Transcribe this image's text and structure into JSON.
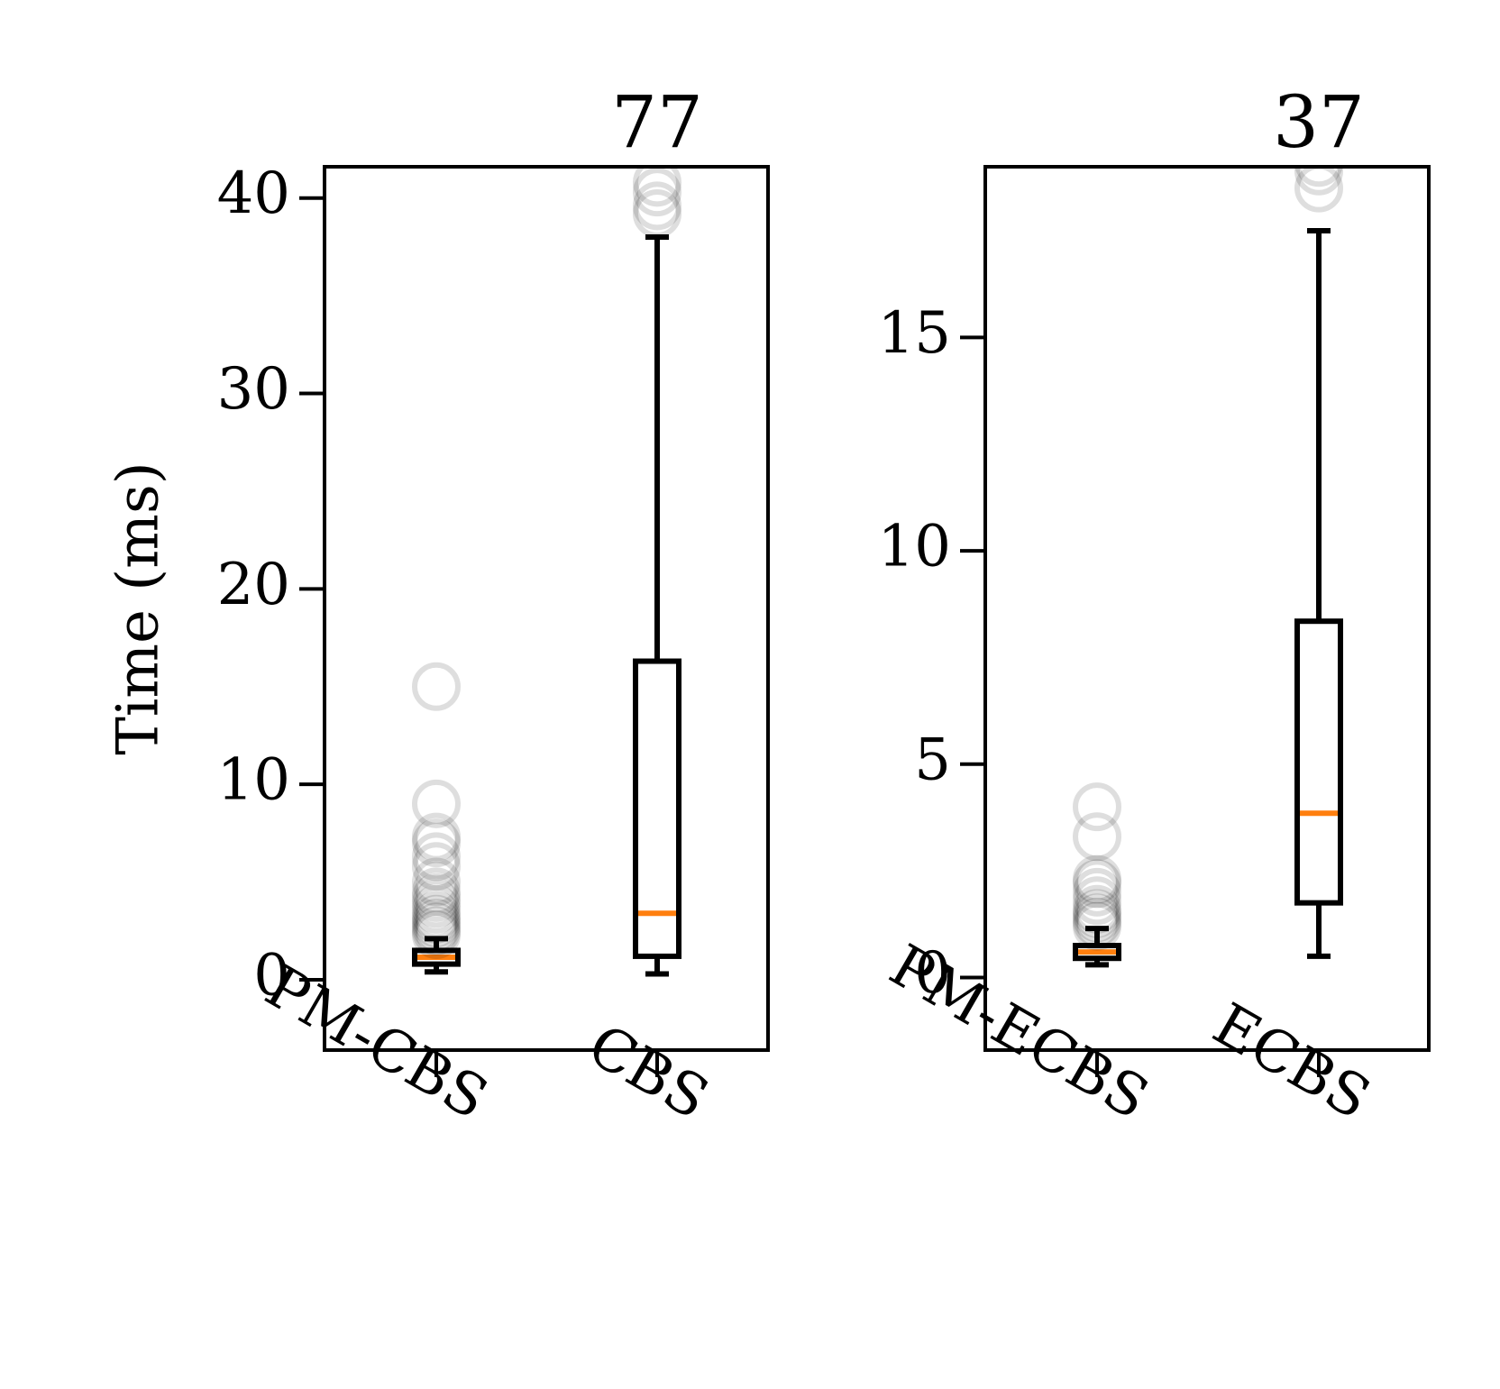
{
  "chart_data": [
    {
      "type": "box",
      "ylabel": "Time (ms)",
      "ylim": [
        -3.6,
        41.6
      ],
      "yticks": [
        0,
        10,
        20,
        30,
        40
      ],
      "grid": false,
      "categories": [
        "PM-CBS",
        "CBS"
      ],
      "boxes": [
        {
          "name": "PM-CBS",
          "whisker_low": 0.4,
          "q1": 0.8,
          "median": 1.15,
          "q3": 1.5,
          "whisker_high": 2.1,
          "outliers": [
            2.3,
            2.5,
            2.7,
            2.9,
            3.1,
            3.3,
            3.6,
            3.9,
            4.2,
            4.5,
            5.0,
            5.8,
            6.3,
            7.0,
            7.3,
            9.0,
            15.0
          ]
        },
        {
          "name": "CBS",
          "whisker_low": 0.3,
          "q1": 1.2,
          "median": 3.4,
          "q3": 16.3,
          "whisker_high": 38.0,
          "outliers": [
            39.2,
            39.6,
            40.3,
            40.8
          ]
        }
      ],
      "annotation": "77",
      "colors": {
        "box": "#000000",
        "median": "#ff7f0e",
        "outlier": "#000000"
      }
    },
    {
      "type": "box",
      "ylabel": "",
      "ylim": [
        -1.7,
        19.0
      ],
      "yticks": [
        0,
        5,
        10,
        15
      ],
      "grid": false,
      "categories": [
        "PM-ECBS",
        "ECBS"
      ],
      "boxes": [
        {
          "name": "PM-ECBS",
          "whisker_low": 0.3,
          "q1": 0.45,
          "median": 0.6,
          "q3": 0.75,
          "whisker_high": 1.15,
          "outliers": [
            1.2,
            1.3,
            1.4,
            1.5,
            1.6,
            1.8,
            2.0,
            2.2,
            2.3,
            3.3,
            4.0
          ]
        },
        {
          "name": "ECBS",
          "whisker_low": 0.5,
          "q1": 1.75,
          "median": 3.85,
          "q3": 8.35,
          "whisker_high": 17.5,
          "outliers": [
            18.5,
            18.9,
            19.1
          ]
        }
      ],
      "annotation": "37",
      "colors": {
        "box": "#000000",
        "median": "#ff7f0e",
        "outlier": "#000000"
      }
    }
  ]
}
